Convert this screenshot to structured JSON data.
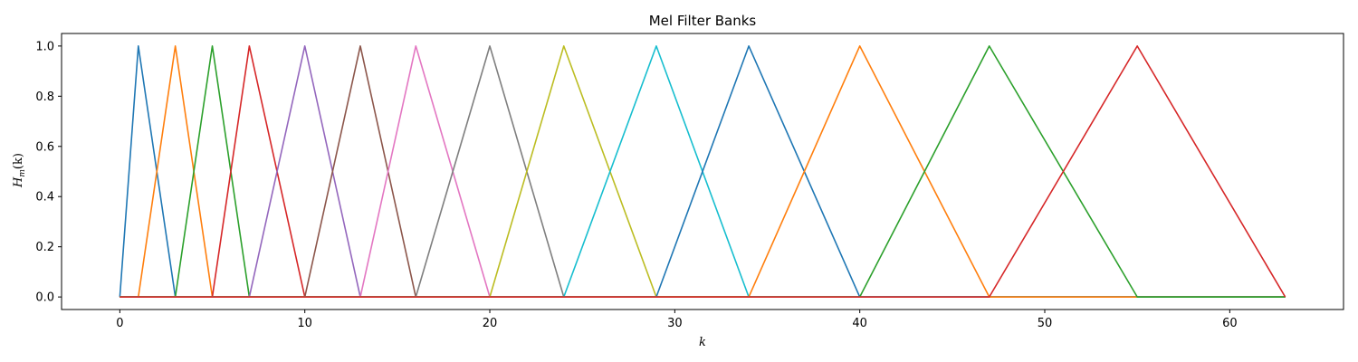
{
  "chart_data": {
    "type": "line",
    "title": "Mel Filter Banks",
    "xlabel": "k",
    "ylabel": "H_m(k)",
    "ylabel_parts": {
      "main": "H",
      "sub": "m",
      "arg": "(k)"
    },
    "xlim": [
      -3.15,
      66.15
    ],
    "ylim": [
      -0.05,
      1.05
    ],
    "xticks": [
      0,
      10,
      20,
      30,
      40,
      50,
      60
    ],
    "yticks": [
      0.0,
      0.2,
      0.4,
      0.6,
      0.8,
      1.0
    ],
    "ytick_labels": [
      "0.0",
      "0.2",
      "0.4",
      "0.6",
      "0.8",
      "1.0"
    ],
    "grid": false,
    "legend": "none",
    "x": [
      0,
      63
    ],
    "filter_edges": [
      0,
      1,
      3,
      5,
      7,
      10,
      13,
      16,
      20,
      24,
      29,
      34,
      40,
      47,
      55,
      63
    ],
    "series": [
      {
        "color": "#1f77b4",
        "points": [
          [
            0,
            0
          ],
          [
            1,
            1
          ],
          [
            3,
            0
          ],
          [
            63,
            0
          ]
        ]
      },
      {
        "color": "#ff7f0e",
        "points": [
          [
            0,
            0
          ],
          [
            1,
            0
          ],
          [
            3,
            1
          ],
          [
            5,
            0
          ],
          [
            63,
            0
          ]
        ]
      },
      {
        "color": "#2ca02c",
        "points": [
          [
            0,
            0
          ],
          [
            3,
            0
          ],
          [
            5,
            1
          ],
          [
            7,
            0
          ],
          [
            63,
            0
          ]
        ]
      },
      {
        "color": "#d62728",
        "points": [
          [
            0,
            0
          ],
          [
            5,
            0
          ],
          [
            7,
            1
          ],
          [
            10,
            0
          ],
          [
            63,
            0
          ]
        ]
      },
      {
        "color": "#9467bd",
        "points": [
          [
            0,
            0
          ],
          [
            7,
            0
          ],
          [
            10,
            1
          ],
          [
            13,
            0
          ],
          [
            63,
            0
          ]
        ]
      },
      {
        "color": "#8c564b",
        "points": [
          [
            0,
            0
          ],
          [
            10,
            0
          ],
          [
            13,
            1
          ],
          [
            16,
            0
          ],
          [
            63,
            0
          ]
        ]
      },
      {
        "color": "#e377c2",
        "points": [
          [
            0,
            0
          ],
          [
            13,
            0
          ],
          [
            16,
            1
          ],
          [
            20,
            0
          ],
          [
            63,
            0
          ]
        ]
      },
      {
        "color": "#7f7f7f",
        "points": [
          [
            0,
            0
          ],
          [
            16,
            0
          ],
          [
            20,
            1
          ],
          [
            24,
            0
          ],
          [
            63,
            0
          ]
        ]
      },
      {
        "color": "#bcbd22",
        "points": [
          [
            0,
            0
          ],
          [
            20,
            0
          ],
          [
            24,
            1
          ],
          [
            29,
            0
          ],
          [
            63,
            0
          ]
        ]
      },
      {
        "color": "#17becf",
        "points": [
          [
            0,
            0
          ],
          [
            24,
            0
          ],
          [
            29,
            1
          ],
          [
            34,
            0
          ],
          [
            63,
            0
          ]
        ]
      },
      {
        "color": "#1f77b4",
        "points": [
          [
            0,
            0
          ],
          [
            29,
            0
          ],
          [
            34,
            1
          ],
          [
            40,
            0
          ],
          [
            63,
            0
          ]
        ]
      },
      {
        "color": "#ff7f0e",
        "points": [
          [
            0,
            0
          ],
          [
            34,
            0
          ],
          [
            40,
            1
          ],
          [
            47,
            0
          ],
          [
            63,
            0
          ]
        ]
      },
      {
        "color": "#2ca02c",
        "points": [
          [
            0,
            0
          ],
          [
            40,
            0
          ],
          [
            47,
            1
          ],
          [
            55,
            0
          ],
          [
            63,
            0
          ]
        ]
      },
      {
        "color": "#d62728",
        "points": [
          [
            0,
            0
          ],
          [
            47,
            0
          ],
          [
            55,
            1
          ],
          [
            63,
            0
          ]
        ]
      }
    ]
  }
}
